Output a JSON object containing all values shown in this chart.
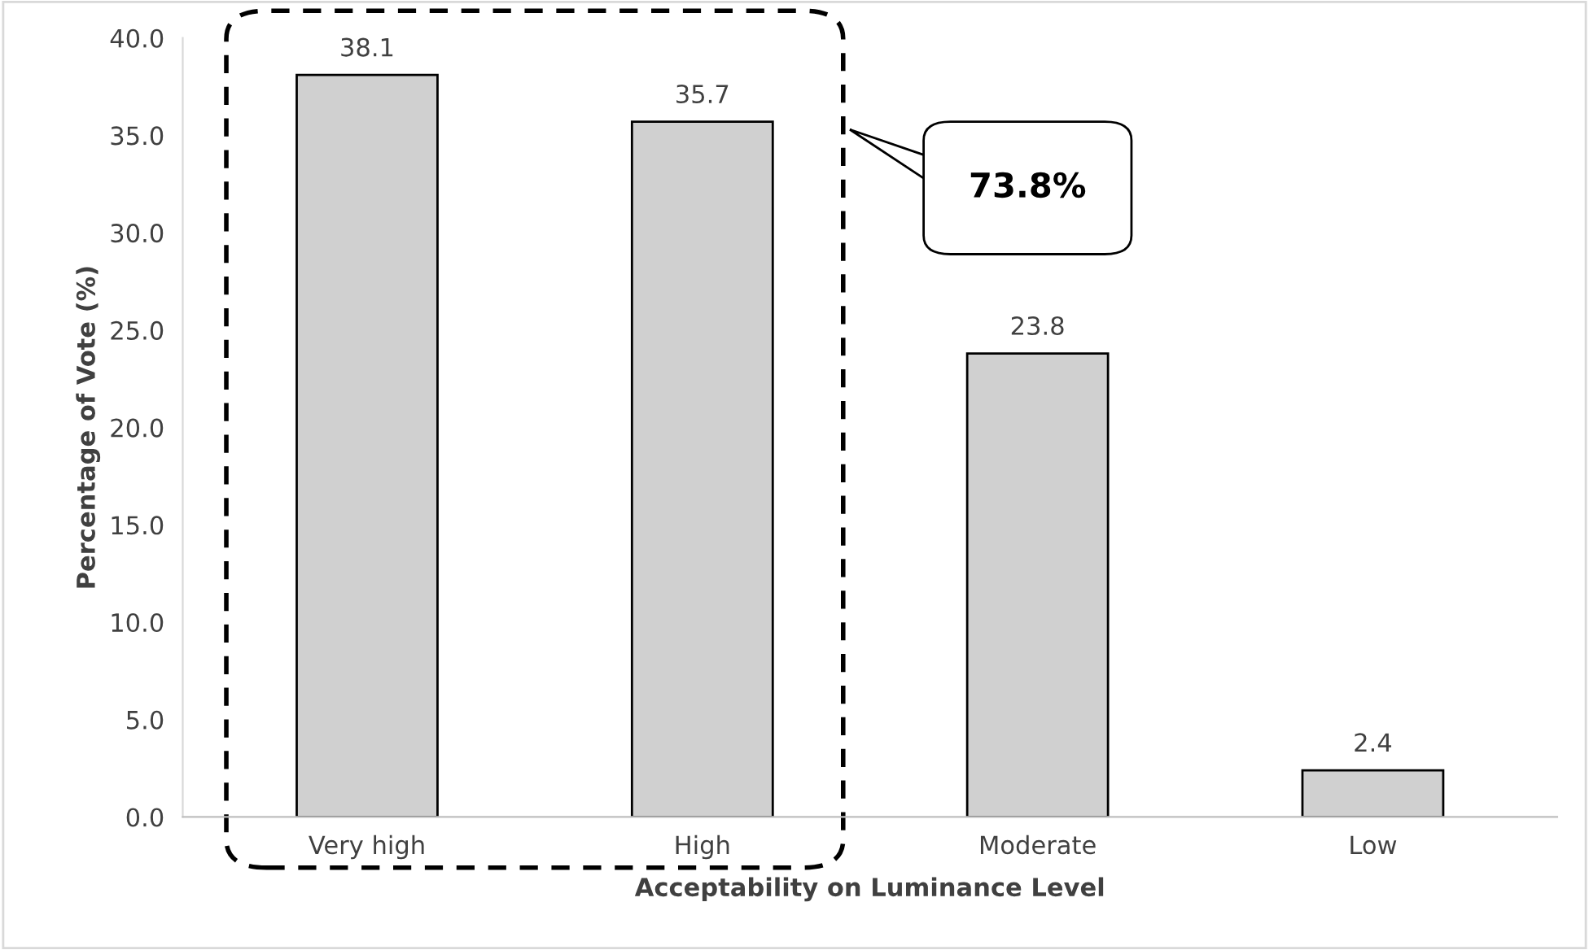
{
  "chart_data": {
    "type": "bar",
    "xlabel": "Acceptability on Luminance Level",
    "ylabel": "Percentage of Vote (%)",
    "categories": [
      "Very high",
      "High",
      "Moderate",
      "Low"
    ],
    "values": [
      38.1,
      35.7,
      23.8,
      2.4
    ],
    "color": "#d0d0d0",
    "ylim": [
      0,
      40
    ],
    "yticks": [
      {
        "value": 0,
        "label": "0.0"
      },
      {
        "value": 5,
        "label": "5.0"
      },
      {
        "value": 10,
        "label": "10.0"
      },
      {
        "value": 15,
        "label": "15.0"
      },
      {
        "value": 20,
        "label": "20.0"
      },
      {
        "value": 25,
        "label": "25.0"
      },
      {
        "value": 30,
        "label": "30.0"
      },
      {
        "value": 35,
        "label": "35.0"
      },
      {
        "value": 40,
        "label": "40.0"
      }
    ],
    "data_labels": true,
    "annotations": [
      "73.8%"
    ]
  }
}
